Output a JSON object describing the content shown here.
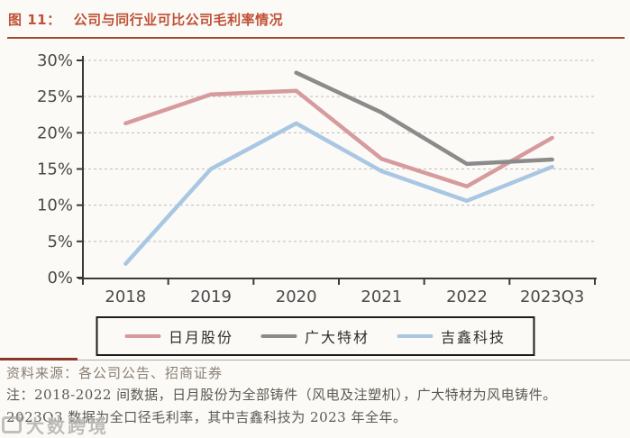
{
  "header": {
    "figure_label": "图 11：",
    "title": "公司与同行业可比公司毛利率情况",
    "accent_color": "#bf5136"
  },
  "chart_data": {
    "type": "line",
    "title": "公司与同行业可比公司毛利率情况",
    "x": [
      "2018",
      "2019",
      "2020",
      "2021",
      "2022",
      "2023Q3"
    ],
    "series": [
      {
        "name": "日月股份",
        "color": "#d79a9d",
        "values": [
          21.3,
          25.3,
          25.8,
          16.4,
          12.6,
          19.3
        ]
      },
      {
        "name": "广大特材",
        "color": "#8b8b8b",
        "values": [
          null,
          null,
          28.3,
          22.8,
          15.7,
          16.3
        ]
      },
      {
        "name": "吉鑫科技",
        "color": "#a9c7e2",
        "values": [
          1.9,
          15.0,
          21.3,
          14.7,
          10.6,
          15.3
        ]
      }
    ],
    "ylim": [
      0,
      30
    ],
    "ytick_step": 5,
    "ytick_labels": [
      "0%",
      "5%",
      "10%",
      "15%",
      "20%",
      "25%",
      "30%"
    ],
    "grid": "horizontal-dashed",
    "legend_position": "bottom",
    "axis_color": "#3a3a3a",
    "grid_color": "#bdbdbd",
    "tick_label_color": "#4a4a4a"
  },
  "footer": {
    "source_line": "资料来源：各公司公告、招商证券",
    "note_line1": "注：2018-2022 间数据，日月股份为全部铸件（风电及注塑机），广大特材为风电铸件。",
    "note_line2": "2023Q3 数据为全口径毛利率，其中吉鑫科技为 2023 年全年。"
  },
  "watermark": {
    "text": "大数跨境"
  }
}
